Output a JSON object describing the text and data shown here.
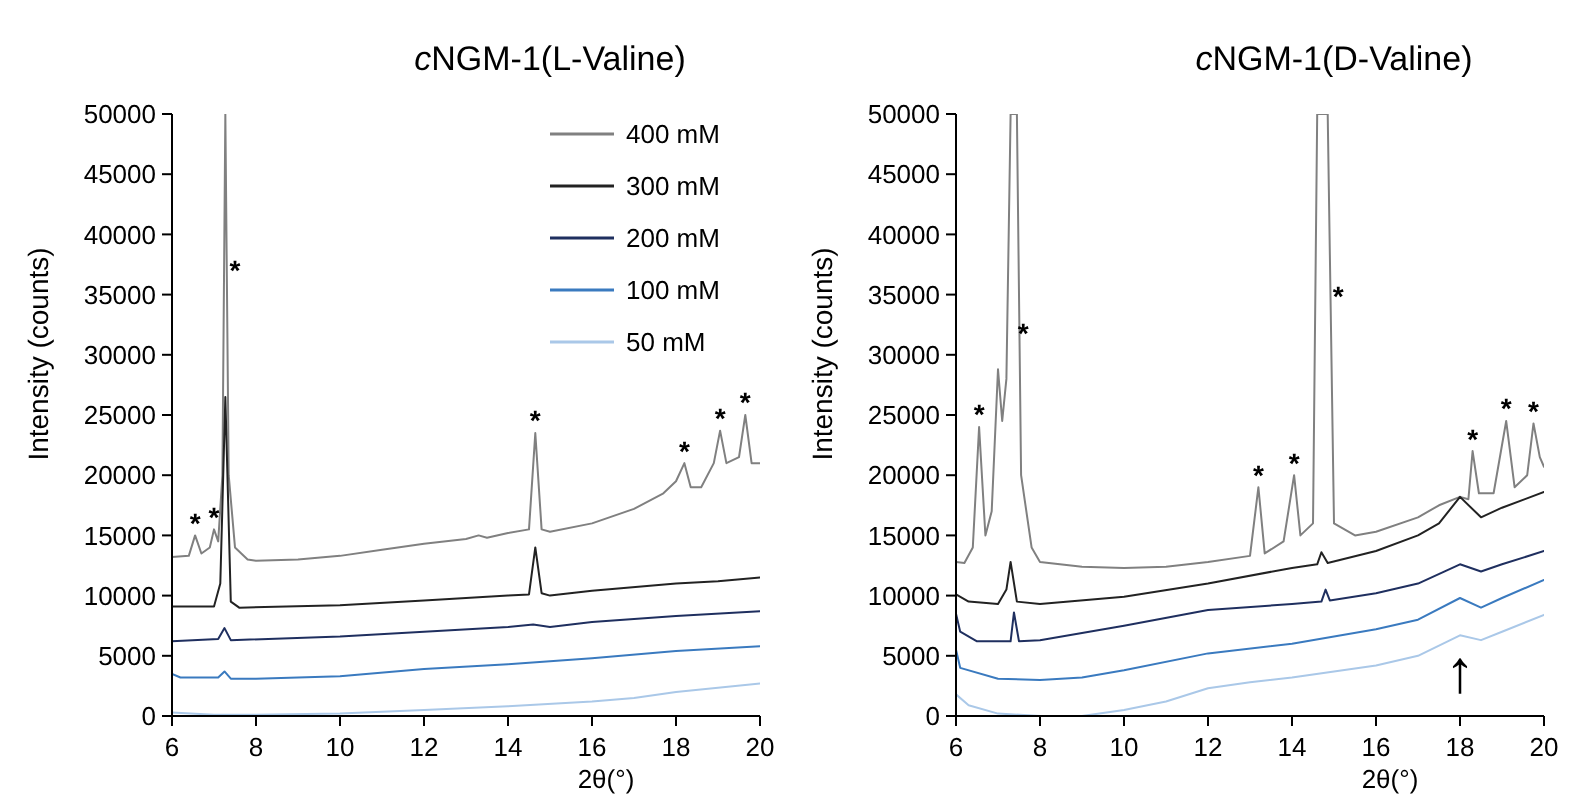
{
  "chart_data": [
    {
      "type": "line",
      "title": "cNGM-1(L-Valine)",
      "xlabel": "2θ(°)",
      "ylabel": "Intensity (counts)",
      "xlim": [
        6,
        20
      ],
      "xticks": [
        6,
        8,
        10,
        12,
        14,
        16,
        18,
        20
      ],
      "ylim": [
        0,
        50000
      ],
      "yticks": [
        0,
        5000,
        10000,
        15000,
        20000,
        25000,
        30000,
        35000,
        40000,
        45000,
        50000
      ],
      "grid": false,
      "legend": "top right",
      "marker": "none",
      "line_style": "solid",
      "series": [
        {
          "name": "400 mM",
          "color": "#808080",
          "x": [
            6,
            6.4,
            6.55,
            6.7,
            6.9,
            7.0,
            7.1,
            7.2,
            7.27,
            7.35,
            7.5,
            7.8,
            8,
            9,
            10,
            11,
            12,
            13,
            13.3,
            13.5,
            14,
            14.5,
            14.65,
            14.8,
            15,
            16,
            17,
            17.7,
            18,
            18.2,
            18.35,
            18.6,
            18.9,
            19.05,
            19.2,
            19.5,
            19.65,
            19.8,
            20
          ],
          "values": [
            13200,
            13300,
            15000,
            13500,
            14000,
            15500,
            14500,
            20000,
            50000,
            20000,
            14000,
            13000,
            12900,
            13000,
            13300,
            13800,
            14300,
            14700,
            15000,
            14800,
            15200,
            15500,
            23500,
            15500,
            15300,
            16000,
            17200,
            18500,
            19500,
            21000,
            19000,
            19000,
            21000,
            23700,
            21000,
            21500,
            25000,
            21000,
            21000
          ]
        },
        {
          "name": "300 mM",
          "color": "#222222",
          "x": [
            6,
            7,
            7.15,
            7.27,
            7.4,
            7.6,
            10,
            12,
            14,
            14.5,
            14.65,
            14.8,
            15,
            16,
            18,
            19,
            20
          ],
          "values": [
            9100,
            9100,
            11000,
            26500,
            9500,
            9000,
            9200,
            9600,
            10000,
            10100,
            14000,
            10200,
            10000,
            10400,
            11000,
            11200,
            11500
          ]
        },
        {
          "name": "200 mM",
          "color": "#1f2f5f",
          "x": [
            6,
            7.1,
            7.25,
            7.4,
            10,
            12,
            14,
            14.6,
            15,
            16,
            18,
            20
          ],
          "values": [
            6200,
            6400,
            7300,
            6300,
            6600,
            7000,
            7400,
            7600,
            7400,
            7800,
            8300,
            8700
          ]
        },
        {
          "name": "100 mM",
          "color": "#3a7abf",
          "x": [
            6,
            6.2,
            7.1,
            7.25,
            7.4,
            8,
            10,
            12,
            14,
            16,
            18,
            20
          ],
          "values": [
            3500,
            3200,
            3200,
            3700,
            3100,
            3100,
            3300,
            3900,
            4300,
            4800,
            5400,
            5800
          ]
        },
        {
          "name": "50 mM",
          "color": "#aac8e8",
          "x": [
            6,
            7,
            8,
            10,
            12,
            14,
            16,
            17,
            18,
            20
          ],
          "values": [
            300,
            100,
            100,
            200,
            500,
            800,
            1200,
            1500,
            2000,
            2700
          ]
        }
      ],
      "annotations": [
        {
          "text": "*",
          "x": 6.55,
          "y": 15000
        },
        {
          "text": "*",
          "x": 7.0,
          "y": 15500
        },
        {
          "text": "*",
          "x": 7.5,
          "y": 36000
        },
        {
          "text": "*",
          "x": 14.65,
          "y": 23500
        },
        {
          "text": "*",
          "x": 18.2,
          "y": 21000
        },
        {
          "text": "*",
          "x": 19.05,
          "y": 23700
        },
        {
          "text": "*",
          "x": 19.65,
          "y": 25000
        }
      ]
    },
    {
      "type": "line",
      "title": "cNGM-1(D-Valine)",
      "xlabel": "2θ(°)",
      "ylabel": "Intensity (counts)",
      "xlim": [
        6,
        20
      ],
      "xticks": [
        6,
        8,
        10,
        12,
        14,
        16,
        18,
        20
      ],
      "ylim": [
        0,
        50000
      ],
      "yticks": [
        0,
        5000,
        10000,
        15000,
        20000,
        25000,
        30000,
        35000,
        40000,
        45000,
        50000
      ],
      "grid": false,
      "marker": "none",
      "line_style": "solid",
      "series": [
        {
          "color": "#808080",
          "x": [
            6,
            6.2,
            6.4,
            6.55,
            6.7,
            6.85,
            7.0,
            7.1,
            7.2,
            7.3,
            7.45,
            7.55,
            7.8,
            8,
            9,
            10,
            11,
            12,
            13,
            13.2,
            13.35,
            13.8,
            14.05,
            14.2,
            14.5,
            14.6,
            14.85,
            15,
            15.5,
            16,
            17,
            17.5,
            18,
            18.2,
            18.3,
            18.45,
            18.8,
            19.1,
            19.3,
            19.6,
            19.75,
            19.9,
            20
          ],
          "values": [
            12800,
            12700,
            14000,
            24000,
            15000,
            17000,
            28800,
            24500,
            28000,
            50000,
            50000,
            20000,
            14000,
            12800,
            12400,
            12300,
            12400,
            12800,
            13300,
            19000,
            13500,
            14500,
            20000,
            15000,
            16000,
            50000,
            50000,
            16000,
            15000,
            15300,
            16500,
            17500,
            18200,
            18000,
            22000,
            18500,
            18500,
            24500,
            19000,
            20000,
            24300,
            21500,
            20700
          ]
        },
        {
          "color": "#222222",
          "x": [
            6,
            6.3,
            7,
            7.2,
            7.3,
            7.45,
            8,
            10,
            12,
            14,
            14.6,
            14.7,
            14.85,
            16,
            17,
            17.5,
            18,
            18.5,
            19,
            20
          ],
          "values": [
            10100,
            9500,
            9300,
            10500,
            12800,
            9500,
            9300,
            9900,
            11000,
            12300,
            12600,
            13600,
            12700,
            13700,
            15000,
            16000,
            18200,
            16500,
            17300,
            18600
          ]
        },
        {
          "color": "#1f2f5f",
          "x": [
            6,
            6.1,
            6.5,
            7.3,
            7.38,
            7.5,
            8,
            10,
            12,
            14,
            14.7,
            14.8,
            14.9,
            16,
            17,
            18,
            18.5,
            19,
            20
          ],
          "values": [
            8500,
            7000,
            6200,
            6200,
            8600,
            6200,
            6300,
            7500,
            8800,
            9300,
            9500,
            10500,
            9600,
            10200,
            11000,
            12600,
            12000,
            12600,
            13700
          ]
        },
        {
          "color": "#3a7abf",
          "x": [
            6,
            6.1,
            7,
            8,
            9,
            10,
            12,
            14,
            16,
            17,
            18,
            18.5,
            19,
            20
          ],
          "values": [
            5500,
            4000,
            3100,
            3000,
            3200,
            3800,
            5200,
            6000,
            7200,
            8000,
            9800,
            9000,
            9800,
            11300
          ]
        },
        {
          "color": "#aac8e8",
          "x": [
            6,
            6.3,
            7,
            8,
            9,
            10,
            11,
            12,
            13,
            14,
            16,
            17,
            18,
            18.5,
            19,
            20
          ],
          "values": [
            1800,
            900,
            200,
            0,
            0,
            500,
            1200,
            2300,
            2800,
            3200,
            4200,
            5000,
            6700,
            6300,
            7000,
            8400
          ]
        }
      ],
      "annotations": [
        {
          "text": "*",
          "x": 6.55,
          "y": 24000
        },
        {
          "text": "*",
          "x": 7.6,
          "y": 30800
        },
        {
          "text": "*",
          "x": 15.1,
          "y": 33800
        },
        {
          "text": "*",
          "x": 13.2,
          "y": 19000
        },
        {
          "text": "*",
          "x": 14.05,
          "y": 20000
        },
        {
          "text": "*",
          "x": 18.3,
          "y": 22000
        },
        {
          "text": "*",
          "x": 19.1,
          "y": 24500
        },
        {
          "text": "*",
          "x": 19.75,
          "y": 24300
        },
        {
          "text": "↑",
          "x": 18,
          "y": 6700
        }
      ]
    }
  ]
}
